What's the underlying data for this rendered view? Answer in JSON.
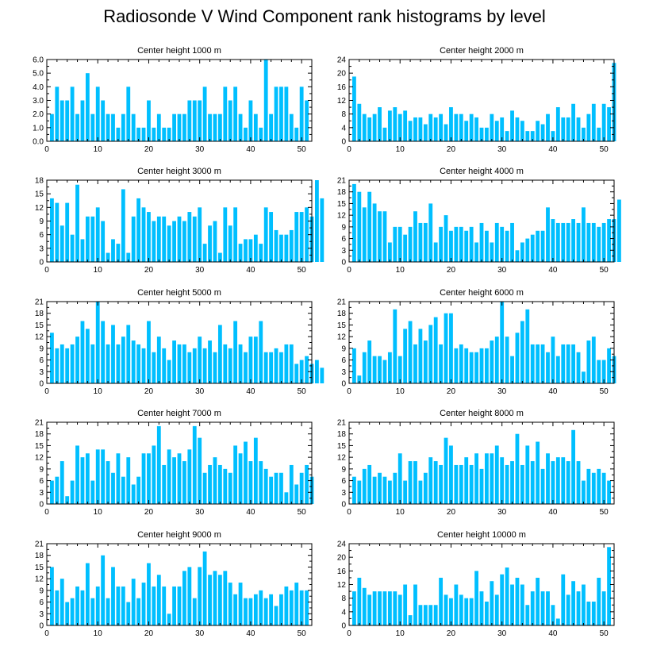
{
  "title": "Radiosonde V Wind Component rank histograms by level",
  "colors": {
    "bar": "#00BFFF",
    "axis": "#000000",
    "background": "#FFFFFF"
  },
  "chart_data": [
    {
      "type": "bar",
      "title": "Center height 1000 m",
      "ylim": [
        0,
        6
      ],
      "yticks": [
        0,
        1,
        2,
        3,
        4,
        5,
        6
      ],
      "ytick_labels": [
        "0.0",
        "1.0",
        "2.0",
        "3.0",
        "4.0",
        "5.0",
        "6.0"
      ],
      "xlim": [
        0,
        52
      ],
      "xticks": [
        0,
        10,
        20,
        30,
        40,
        50
      ],
      "values": [
        2,
        4,
        3,
        3,
        4,
        2,
        3,
        5,
        2,
        4,
        3,
        2,
        2,
        1,
        2,
        4,
        2,
        1,
        1,
        3,
        1,
        2,
        1,
        1,
        2,
        2,
        2,
        3,
        3,
        3,
        4,
        2,
        2,
        2,
        4,
        3,
        4,
        2,
        1,
        3,
        2,
        1,
        6,
        2,
        4,
        4,
        4,
        2,
        1,
        4,
        3
      ]
    },
    {
      "type": "bar",
      "title": "Center height 2000 m",
      "ylim": [
        0,
        24
      ],
      "yticks": [
        0,
        4,
        8,
        12,
        16,
        20,
        24
      ],
      "ytick_labels": [
        "0",
        "4",
        "8",
        "12",
        "16",
        "20",
        "24"
      ],
      "xlim": [
        0,
        52
      ],
      "xticks": [
        0,
        10,
        20,
        30,
        40,
        50
      ],
      "values": [
        19,
        11,
        8,
        7,
        8,
        10,
        4,
        9,
        10,
        8,
        9,
        6,
        7,
        7,
        5,
        8,
        7,
        8,
        5,
        10,
        8,
        8,
        6,
        8,
        7,
        4,
        4,
        8,
        6,
        7,
        3,
        9,
        7,
        6,
        3,
        3,
        6,
        5,
        8,
        3,
        10,
        7,
        7,
        11,
        7,
        4,
        8,
        11,
        4,
        11,
        10,
        23
      ]
    },
    {
      "type": "bar",
      "title": "Center height 3000 m",
      "ylim": [
        0,
        18
      ],
      "yticks": [
        0,
        3,
        6,
        9,
        12,
        15,
        18
      ],
      "ytick_labels": [
        "0",
        "3",
        "6",
        "9",
        "12",
        "15",
        "18"
      ],
      "xlim": [
        0,
        52
      ],
      "xticks": [
        0,
        10,
        20,
        30,
        40,
        50
      ],
      "values": [
        14,
        13,
        8,
        13,
        6,
        17,
        5,
        10,
        10,
        12,
        9,
        2,
        5,
        4,
        16,
        2,
        10,
        14,
        12,
        11,
        9,
        10,
        10,
        8,
        9,
        10,
        9,
        11,
        10,
        12,
        4,
        8,
        9,
        2,
        12,
        8,
        12,
        4,
        5,
        5,
        6,
        4,
        12,
        11,
        7,
        6,
        6,
        7,
        11,
        11,
        12,
        10,
        18,
        14
      ]
    },
    {
      "type": "bar",
      "title": "Center height 4000 m",
      "ylim": [
        0,
        21
      ],
      "yticks": [
        0,
        3,
        6,
        9,
        12,
        15,
        18,
        21
      ],
      "ytick_labels": [
        "0",
        "3",
        "6",
        "9",
        "12",
        "15",
        "18",
        "21"
      ],
      "xlim": [
        0,
        52
      ],
      "xticks": [
        0,
        10,
        20,
        30,
        40,
        50
      ],
      "values": [
        20,
        18,
        14,
        18,
        15,
        13,
        13,
        5,
        9,
        9,
        7,
        9,
        13,
        10,
        10,
        15,
        5,
        9,
        12,
        8,
        9,
        9,
        8,
        9,
        5,
        10,
        8,
        5,
        10,
        9,
        8,
        10,
        3,
        5,
        6,
        7,
        8,
        8,
        14,
        11,
        10,
        10,
        10,
        11,
        10,
        14,
        10,
        10,
        9,
        10,
        11,
        11,
        16
      ]
    },
    {
      "type": "bar",
      "title": "Center height 5000 m",
      "ylim": [
        0,
        21
      ],
      "yticks": [
        0,
        3,
        6,
        9,
        12,
        15,
        18,
        21
      ],
      "ytick_labels": [
        "0",
        "3",
        "6",
        "9",
        "12",
        "15",
        "18",
        "21"
      ],
      "xlim": [
        0,
        52
      ],
      "xticks": [
        0,
        10,
        20,
        30,
        40,
        50
      ],
      "values": [
        13,
        9,
        10,
        9,
        10,
        12,
        16,
        14,
        10,
        21,
        16,
        10,
        15,
        10,
        12,
        15,
        11,
        10,
        9,
        16,
        8,
        12,
        9,
        6,
        11,
        10,
        10,
        8,
        9,
        12,
        9,
        11,
        8,
        15,
        10,
        9,
        16,
        10,
        8,
        12,
        12,
        16,
        8,
        8,
        9,
        8,
        10,
        10,
        5,
        6,
        7,
        5,
        6,
        4
      ]
    },
    {
      "type": "bar",
      "title": "Center height 6000 m",
      "ylim": [
        0,
        21
      ],
      "yticks": [
        0,
        3,
        6,
        9,
        12,
        15,
        18,
        21
      ],
      "ytick_labels": [
        "0",
        "3",
        "6",
        "9",
        "12",
        "15",
        "18",
        "21"
      ],
      "xlim": [
        0,
        52
      ],
      "xticks": [
        0,
        10,
        20,
        30,
        40,
        50
      ],
      "values": [
        9,
        2,
        8,
        11,
        7,
        7,
        6,
        8,
        19,
        7,
        14,
        16,
        10,
        14,
        11,
        15,
        17,
        10,
        18,
        18,
        9,
        10,
        9,
        8,
        8,
        9,
        9,
        11,
        12,
        21,
        12,
        7,
        13,
        16,
        19,
        10,
        10,
        10,
        8,
        12,
        7,
        10,
        10,
        10,
        8,
        3,
        11,
        12,
        6,
        6,
        9,
        7
      ]
    },
    {
      "type": "bar",
      "title": "Center height 7000 m",
      "ylim": [
        0,
        21
      ],
      "yticks": [
        0,
        3,
        6,
        9,
        12,
        15,
        18,
        21
      ],
      "ytick_labels": [
        "0",
        "3",
        "6",
        "9",
        "12",
        "15",
        "18",
        "21"
      ],
      "xlim": [
        0,
        52
      ],
      "xticks": [
        0,
        10,
        20,
        30,
        40,
        50
      ],
      "values": [
        6,
        7,
        11,
        2,
        6,
        15,
        12,
        13,
        6,
        14,
        14,
        11,
        8,
        13,
        7,
        12,
        5,
        7,
        13,
        13,
        15,
        20,
        10,
        14,
        12,
        13,
        11,
        14,
        20,
        17,
        8,
        10,
        12,
        10,
        9,
        8,
        15,
        13,
        16,
        11,
        17,
        11,
        9,
        7,
        8,
        8,
        3,
        10,
        5,
        8,
        10,
        7
      ]
    },
    {
      "type": "bar",
      "title": "Center height 8000 m",
      "ylim": [
        0,
        21
      ],
      "yticks": [
        0,
        3,
        6,
        9,
        12,
        15,
        18,
        21
      ],
      "ytick_labels": [
        "0",
        "3",
        "6",
        "9",
        "12",
        "15",
        "18",
        "21"
      ],
      "xlim": [
        0,
        52
      ],
      "xticks": [
        0,
        10,
        20,
        30,
        40,
        50
      ],
      "values": [
        7,
        6,
        9,
        10,
        7,
        8,
        7,
        6,
        8,
        13,
        6,
        11,
        11,
        6,
        8,
        12,
        11,
        10,
        17,
        15,
        10,
        10,
        12,
        10,
        13,
        9,
        13,
        13,
        15,
        12,
        10,
        11,
        18,
        10,
        15,
        11,
        16,
        9,
        13,
        11,
        12,
        12,
        11,
        19,
        11,
        6,
        9,
        8,
        9,
        8,
        6
      ]
    },
    {
      "type": "bar",
      "title": "Center height 9000 m",
      "ylim": [
        0,
        21
      ],
      "yticks": [
        0,
        3,
        6,
        9,
        12,
        15,
        18,
        21
      ],
      "ytick_labels": [
        "0",
        "3",
        "6",
        "9",
        "12",
        "15",
        "18",
        "21"
      ],
      "xlim": [
        0,
        52
      ],
      "xticks": [
        0,
        10,
        20,
        30,
        40,
        50
      ],
      "values": [
        15,
        9,
        12,
        6,
        7,
        10,
        9,
        16,
        7,
        10,
        18,
        7,
        15,
        10,
        10,
        6,
        12,
        7,
        11,
        16,
        10,
        13,
        10,
        3,
        10,
        10,
        14,
        15,
        7,
        15,
        19,
        13,
        14,
        13,
        14,
        11,
        8,
        11,
        7,
        7,
        8,
        9,
        7,
        8,
        5,
        8,
        10,
        9,
        11,
        9,
        9
      ]
    },
    {
      "type": "bar",
      "title": "Center height 10000 m",
      "ylim": [
        0,
        24
      ],
      "yticks": [
        0,
        4,
        8,
        12,
        16,
        20,
        24
      ],
      "ytick_labels": [
        "0",
        "4",
        "8",
        "12",
        "16",
        "20",
        "24"
      ],
      "xlim": [
        0,
        52
      ],
      "xticks": [
        0,
        10,
        20,
        30,
        40,
        50
      ],
      "values": [
        10,
        14,
        11,
        9,
        10,
        10,
        10,
        10,
        10,
        9,
        12,
        3,
        12,
        6,
        6,
        6,
        6,
        14,
        9,
        8,
        12,
        9,
        8,
        8,
        16,
        10,
        7,
        13,
        9,
        15,
        17,
        12,
        14,
        12,
        6,
        10,
        14,
        10,
        10,
        6,
        2,
        15,
        9,
        13,
        10,
        12,
        7,
        7,
        14,
        10,
        23
      ]
    }
  ]
}
